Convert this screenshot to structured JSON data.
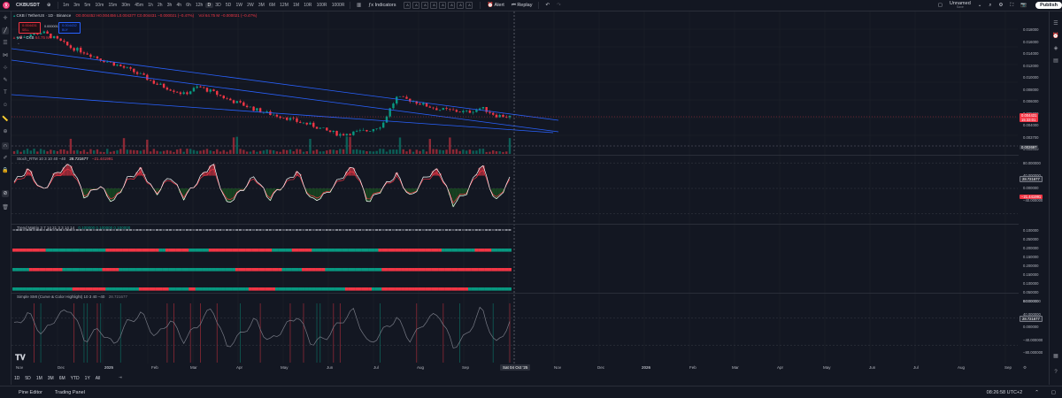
{
  "topbar": {
    "symbol": "CKBUSDT",
    "intervals": [
      "1m",
      "3m",
      "5m",
      "10m",
      "15m",
      "30m",
      "45m",
      "1h",
      "2h",
      "3h",
      "4h",
      "6h",
      "12h",
      "D",
      "3D",
      "5D",
      "1W",
      "2W",
      "3M",
      "6M",
      "12M",
      "1M",
      "10R",
      "100R",
      "1000R"
    ],
    "active_interval": "D",
    "indicators_label": "Indicators",
    "alert_label": "Alert",
    "replay_label": "Replay",
    "layout_name": "Unnamed",
    "layout_sub": "Save",
    "publish_label": "Publish"
  },
  "legend": {
    "title": "CKB / TetherUS · 1D · Binance",
    "ohlc": "O0.004452 H0.004456 L0.004377 C0.004431 −0.000021 (−0.47%)",
    "vol_extra": "Vol 64.75 M −0.000021 (−0.47%)",
    "sell_price": "0.004431",
    "sell_label": "SELL",
    "spread": "0.000001",
    "buy_price": "0.004432",
    "buy_label": "BUY",
    "vol_label": "Vol · CKB",
    "vol_value": "64.75 M"
  },
  "price_axis": {
    "currency": "USDT",
    "labels": [
      "0.018000",
      "0.016000",
      "0.014000",
      "0.012000",
      "0.010000",
      "0.008000",
      "0.006000",
      "0.005000",
      "0.004000",
      "0.003700",
      "0.003000"
    ],
    "current_price": "0.004431",
    "current_countdown": "15:33:01",
    "crosshair_price": "0.002697"
  },
  "stoch": {
    "label": "Stoch_RTM  10  3  10  40  −40",
    "value1": "28.721677",
    "value2": "−21.441991",
    "axis": [
      "80.000000",
      "40.000000",
      "0.000000",
      "−40.000000"
    ],
    "tag1": "28.721677",
    "tag2": "−21.441991"
  },
  "trend_matrix": {
    "label": "Trend Matrix  3  7  14  21  3  3  14  14",
    "values": "0.100000  0.100000  0.100000",
    "axis": [
      "0.100000",
      "0.250000",
      "0.200000",
      "0.150000",
      "0.200000",
      "0.150000",
      "0.100000",
      "0.050000",
      "0.000000"
    ]
  },
  "smi": {
    "label": "Simple SMI (Curve & Color Highlight)  10  3  40  −40",
    "value": "28.721677",
    "axis": [
      "80.000000",
      "40.000000",
      "0.000000",
      "−40.000000",
      "−80.000000"
    ],
    "tag": "28.721677"
  },
  "time_axis": {
    "labels": [
      "Nov",
      "Dec",
      "2025",
      "Feb",
      "Mar",
      "Apr",
      "May",
      "Jun",
      "Jul",
      "Aug",
      "Sep",
      "Nov",
      "Dec",
      "2026",
      "Feb",
      "Mar",
      "Apr",
      "May",
      "Jun",
      "Jul",
      "Aug",
      "Sep"
    ],
    "crosshair_date": "Sat 04 Oct '25"
  },
  "ranges": [
    "1D",
    "5D",
    "1M",
    "3M",
    "6M",
    "YTD",
    "1Y",
    "All"
  ],
  "bottombar": {
    "tabs": [
      "Pine Editor",
      "Trading Panel"
    ],
    "clock": "08:26:58 UTC+2"
  },
  "colors": {
    "up": "#089981",
    "down": "#f23645",
    "channel": "#2962ff",
    "bg": "#131722"
  },
  "chart_data": {
    "type": "candlestick",
    "title": "CKB / TetherUS · 1D · Binance",
    "close_trend": [
      0.0138,
      0.0144,
      0.015,
      0.0135,
      0.012,
      0.0112,
      0.0102,
      0.0095,
      0.0088,
      0.008,
      0.0071,
      0.0066,
      0.0061,
      0.0068,
      0.0063,
      0.0057,
      0.0053,
      0.0049,
      0.0046,
      0.0044,
      0.0041,
      0.0039,
      0.0036,
      0.0034,
      0.0035,
      0.0036,
      0.0039,
      0.0058,
      0.0056,
      0.0052,
      0.0049,
      0.0048,
      0.0047,
      0.005,
      0.0045,
      0.0044
    ],
    "stoch_values": [
      20,
      60,
      -10,
      50,
      75,
      -30,
      10,
      -45,
      30,
      60,
      -20,
      40,
      -30,
      25,
      80,
      -50,
      -10,
      40,
      -35,
      10,
      55,
      -40,
      -20,
      30,
      70,
      -45,
      0,
      45,
      -30,
      35,
      60,
      -50,
      -10,
      80,
      -45,
      28.72
    ]
  }
}
